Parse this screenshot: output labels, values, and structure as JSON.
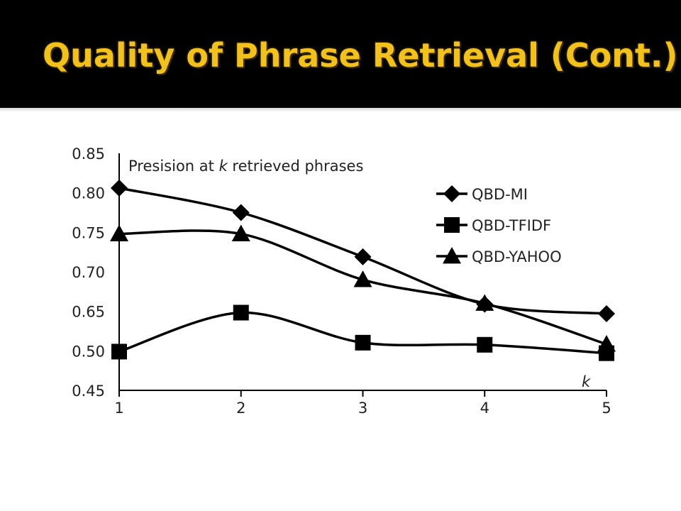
{
  "slide": {
    "title": "Quality of Phrase Retrieval (Cont.)"
  },
  "colors": {
    "title_bar": "#000000",
    "title_text": "#f2c21b",
    "series": "#000000"
  },
  "chart_data": {
    "type": "line",
    "title": "",
    "annotation_prefix": "Presision at ",
    "annotation_var": "k",
    "annotation_suffix": " retrieved phrases",
    "xlabel": "k",
    "ylabel": "",
    "x": [
      1,
      2,
      3,
      4,
      5
    ],
    "y_tick_labels": [
      "0.85",
      "0.80",
      "0.75",
      "0.70",
      "0.65",
      "0.50",
      "0.45"
    ],
    "legend_position": "right",
    "grid": false,
    "series": [
      {
        "name": "QBD-MI",
        "marker": "diamond",
        "values": [
          0.806,
          0.775,
          0.719,
          0.659,
          0.641
        ]
      },
      {
        "name": "QBD-TFIDF",
        "marker": "square",
        "values": [
          0.499,
          0.645,
          0.531,
          0.523,
          0.497
        ]
      },
      {
        "name": "QBD-YAHOO",
        "marker": "triangle",
        "values": [
          0.748,
          0.748,
          0.69,
          0.66,
          0.525
        ]
      }
    ]
  }
}
